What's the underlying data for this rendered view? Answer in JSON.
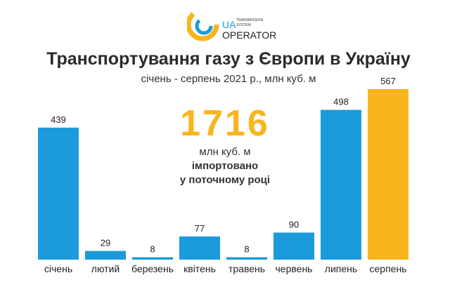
{
  "logo": {
    "line1": "UA",
    "line2": "TRANSMISSION SYSTEM",
    "line3": "OPERATOR"
  },
  "summary": {
    "value": "1716",
    "unit": "млн куб. м",
    "text1": "імпортовано",
    "text2": "у поточному році"
  },
  "colors": {
    "blue": "#1b9bdb",
    "highlight": "#f8b51d"
  },
  "chart_data": {
    "type": "bar",
    "title": "Транспортування газу з Європи в Україну",
    "subtitle": "січень - серпень 2021 р., млн куб. м",
    "categories": [
      "січень",
      "лютий",
      "березень",
      "квітень",
      "травень",
      "червень",
      "липень",
      "серпень"
    ],
    "values": [
      439,
      29,
      8,
      77,
      8,
      90,
      498,
      567
    ],
    "highlight_index": 7,
    "ylim": [
      0,
      567
    ],
    "grid": false
  }
}
